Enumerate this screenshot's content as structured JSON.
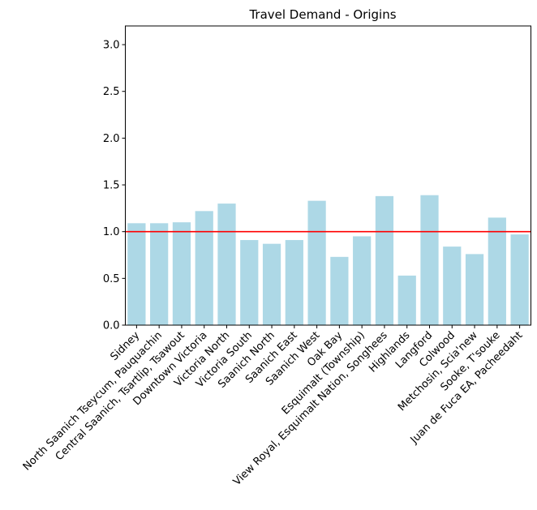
{
  "chart_data": {
    "type": "bar",
    "title": "Travel Demand - Origins",
    "xlabel": "",
    "ylabel": "",
    "categories": [
      "Sidney",
      "North Saanich Tseycum, Pauquachin",
      "Central Saanich, Tsartlip, Tsawout",
      "Downtown Victoria",
      "Victoria North",
      "Victoria South",
      "Saanich North",
      "Saanich East",
      "Saanich West",
      "Oak Bay",
      "Esquimalt (Township)",
      "View Royal, Esquimalt Nation, Songhees",
      "Highlands",
      "Langford",
      "Colwood",
      "Metchosin, Scia'new",
      "Sooke, T'souke",
      "Juan de Fuca EA, Pacheedaht"
    ],
    "values": [
      1.09,
      1.09,
      1.1,
      1.22,
      1.3,
      0.91,
      0.87,
      0.91,
      1.33,
      0.73,
      0.95,
      1.38,
      0.53,
      1.39,
      0.84,
      0.76,
      1.15,
      0.97
    ],
    "ylim": [
      0,
      3.2
    ],
    "yticks": [
      "0.0",
      "0.5",
      "1.0",
      "1.5",
      "2.0",
      "2.5",
      "3.0"
    ],
    "reference_line": {
      "y": 1.0,
      "color": "#ff0000"
    },
    "bar_color": "#add8e6",
    "grid": false
  }
}
